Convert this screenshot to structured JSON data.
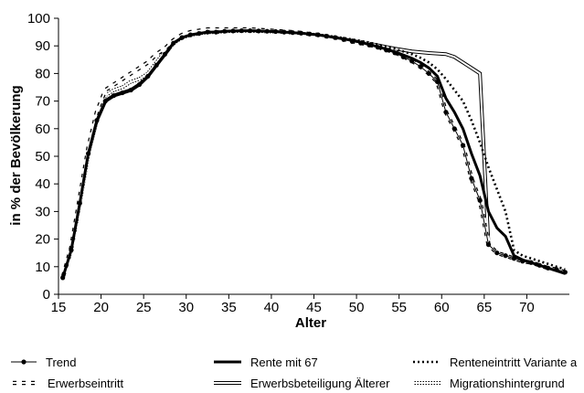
{
  "chart_data": {
    "type": "line",
    "xlabel": "Alter",
    "ylabel": "in % der Bevölkerung",
    "xlim": [
      15,
      75
    ],
    "ylim": [
      0,
      100
    ],
    "xticks": [
      15,
      20,
      25,
      30,
      35,
      40,
      45,
      50,
      55,
      60,
      65,
      70
    ],
    "yticks": [
      0,
      10,
      20,
      30,
      40,
      50,
      60,
      70,
      80,
      90,
      100
    ],
    "grid": false,
    "legend_position": "bottom",
    "series": [
      {
        "name": "Trend",
        "style": "thin-with-dots",
        "x": [
          15.5,
          16.5,
          17.5,
          18.5,
          19.5,
          20.5,
          21.5,
          22.5,
          23.5,
          24.5,
          25.5,
          26.5,
          27.5,
          28.5,
          29.5,
          30.5,
          31.5,
          32.5,
          33.5,
          34.5,
          35.5,
          36.5,
          37.5,
          38.5,
          39.5,
          40.5,
          41.5,
          42.5,
          43.5,
          44.5,
          45.5,
          46.5,
          47.5,
          48.5,
          49.5,
          50.5,
          51.5,
          52.5,
          53.5,
          54.5,
          55.5,
          56.5,
          57.5,
          58.5,
          59.5,
          60.5,
          61.5,
          62.5,
          63.5,
          64.5,
          65.5,
          66.5,
          67.5,
          68.5,
          69.5,
          70.5,
          71.5,
          72.5,
          73.5,
          74.5
        ],
        "y": [
          6,
          16,
          33,
          51,
          63,
          70,
          72,
          73,
          74,
          76,
          79,
          83,
          87,
          91,
          93,
          94,
          94.5,
          95,
          95,
          95.3,
          95.4,
          95.5,
          95.5,
          95.4,
          95.3,
          95.2,
          95,
          94.8,
          94.6,
          94.3,
          94,
          93.5,
          93,
          92.3,
          91.6,
          91,
          90.3,
          89.5,
          88.5,
          87.5,
          86,
          84.5,
          82.5,
          80,
          77,
          66,
          60,
          54,
          42,
          34,
          18,
          15,
          14,
          13,
          12,
          11.5,
          10.5,
          9.5,
          9,
          8
        ]
      },
      {
        "name": "Rente mit 67",
        "style": "thick",
        "x": [
          15.5,
          16.5,
          17.5,
          18.5,
          19.5,
          20.5,
          21.5,
          22.5,
          23.5,
          24.5,
          25.5,
          26.5,
          27.5,
          28.5,
          29.5,
          30.5,
          31.5,
          32.5,
          33.5,
          34.5,
          35.5,
          36.5,
          37.5,
          38.5,
          39.5,
          40.5,
          41.5,
          42.5,
          43.5,
          44.5,
          45.5,
          46.5,
          47.5,
          48.5,
          49.5,
          50.5,
          51.5,
          52.5,
          53.5,
          54.5,
          55.5,
          56.5,
          57.5,
          58.5,
          59.5,
          60.5,
          61.5,
          62.5,
          63.5,
          64.5,
          65.5,
          66.5,
          67.5,
          68.5,
          69.5,
          70.5,
          71.5,
          72.5,
          73.5,
          74.5
        ],
        "y": [
          6,
          16,
          33,
          51,
          63,
          70,
          72,
          73,
          74,
          76,
          79,
          83,
          87,
          91,
          93,
          94,
          94.5,
          95,
          95,
          95.3,
          95.4,
          95.5,
          95.5,
          95.4,
          95.3,
          95.2,
          95,
          94.8,
          94.6,
          94.3,
          94,
          93.5,
          93,
          92.5,
          92,
          91.3,
          90.5,
          89.7,
          88.8,
          87.8,
          86.7,
          85.5,
          84,
          82,
          79,
          71,
          66,
          60,
          51,
          43,
          30,
          24,
          21,
          14,
          12.5,
          11.5,
          10.5,
          9.5,
          8.5,
          7.5
        ]
      },
      {
        "name": "Renteneintritt Variante a",
        "style": "dotted",
        "x": [
          15.5,
          16.5,
          17.5,
          18.5,
          19.5,
          20.5,
          21.5,
          22.5,
          23.5,
          24.5,
          25.5,
          26.5,
          27.5,
          28.5,
          29.5,
          30.5,
          31.5,
          32.5,
          33.5,
          34.5,
          35.5,
          36.5,
          37.5,
          38.5,
          39.5,
          40.5,
          41.5,
          42.5,
          43.5,
          44.5,
          45.5,
          46.5,
          47.5,
          48.5,
          49.5,
          50.5,
          51.5,
          52.5,
          53.5,
          54.5,
          55.5,
          56.5,
          57.5,
          58.5,
          59.5,
          60.5,
          61.5,
          62.5,
          63.5,
          64.5,
          65.5,
          66.5,
          67.5,
          68.5,
          69.5,
          70.5,
          71.5,
          72.5,
          73.5,
          74.5
        ],
        "y": [
          6,
          16,
          33,
          51,
          63,
          70,
          72,
          73,
          74,
          76,
          79,
          83,
          87,
          91,
          93,
          94,
          94.5,
          95,
          95,
          95.3,
          95.4,
          95.5,
          95.5,
          95.4,
          95.3,
          95.2,
          95,
          94.8,
          94.6,
          94.4,
          94.1,
          93.7,
          93.3,
          92.8,
          92.3,
          91.8,
          91.2,
          90.5,
          89.7,
          88.9,
          88,
          87,
          85.7,
          84,
          81.5,
          78,
          74,
          70,
          63,
          55,
          46,
          38,
          30,
          16,
          14,
          13,
          12,
          11,
          10,
          9
        ]
      },
      {
        "name": "Erwerbseintritt",
        "style": "dashed",
        "x": [
          15.5,
          16.5,
          17.5,
          18.5,
          19.5,
          20.5,
          21.5,
          22.5,
          23.5,
          24.5,
          25.5,
          26.5,
          27.5,
          28.5,
          29.5,
          30.5,
          31.5,
          32.5,
          33.5,
          34.5,
          35.5,
          36.5,
          37.5,
          38.5,
          39.5,
          40.5,
          41.5,
          42.5,
          43.5,
          44.5,
          45.5,
          46.5,
          47.5,
          48.5,
          49.5,
          50.5,
          51.5,
          52.5,
          53.5,
          54.5,
          55.5,
          56.5,
          57.5,
          58.5,
          59.5,
          60.5,
          61.5,
          62.5,
          63.5,
          64.5,
          65.5,
          66.5,
          67.5,
          68.5,
          69.5,
          70.5,
          71.5,
          72.5,
          73.5,
          74.5
        ],
        "y": [
          6,
          17,
          35,
          53,
          66,
          74,
          76,
          78,
          80,
          82,
          84,
          87,
          89,
          92,
          94,
          95,
          95.5,
          96,
          96,
          96,
          96,
          96,
          96,
          95.8,
          95.6,
          95.4,
          95.2,
          95,
          94.7,
          94.3,
          94,
          93.5,
          93,
          92.4,
          91.8,
          91.1,
          90.4,
          89.6,
          88.7,
          87.7,
          86.3,
          84.6,
          82.6,
          80,
          77,
          66,
          60,
          54,
          42,
          34,
          18,
          15,
          14,
          13,
          12,
          11.5,
          10.5,
          9.5,
          9,
          8
        ]
      },
      {
        "name": "Erwerbsbeteiligung Älterer",
        "style": "double",
        "x": [
          15.5,
          16.5,
          17.5,
          18.5,
          19.5,
          20.5,
          21.5,
          22.5,
          23.5,
          24.5,
          25.5,
          26.5,
          27.5,
          28.5,
          29.5,
          30.5,
          31.5,
          32.5,
          33.5,
          34.5,
          35.5,
          36.5,
          37.5,
          38.5,
          39.5,
          40.5,
          41.5,
          42.5,
          43.5,
          44.5,
          45.5,
          46.5,
          47.5,
          48.5,
          49.5,
          50.5,
          51.5,
          52.5,
          53.5,
          54.5,
          55.5,
          56.5,
          57.5,
          58.5,
          59.5,
          60.5,
          61.5,
          62.5,
          63.5,
          64.5,
          65.5,
          66.5,
          67.5,
          68.5,
          69.5,
          70.5,
          71.5,
          72.5,
          73.5,
          74.5
        ],
        "y": [
          6,
          16,
          33,
          51,
          63,
          70,
          72,
          73,
          74,
          76,
          79,
          83,
          87,
          91,
          93,
          94,
          94.5,
          95,
          95,
          95.3,
          95.4,
          95.5,
          95.5,
          95.4,
          95.3,
          95.2,
          95,
          94.8,
          94.6,
          94.3,
          94,
          93.6,
          93.1,
          92.6,
          92,
          91.4,
          90.8,
          90.2,
          89.6,
          89,
          88.5,
          88,
          87.7,
          87.4,
          87.2,
          87,
          86,
          84,
          82,
          80,
          18,
          15,
          14,
          13,
          12,
          11.5,
          10.5,
          9.5,
          9,
          8
        ]
      },
      {
        "name": "Migrationshintergrund",
        "style": "thin-dotted",
        "x": [
          15.5,
          16.5,
          17.5,
          18.5,
          19.5,
          20.5,
          21.5,
          22.5,
          23.5,
          24.5,
          25.5,
          26.5,
          27.5,
          28.5,
          29.5,
          30.5,
          31.5,
          32.5,
          33.5,
          34.5,
          35.5,
          36.5,
          37.5,
          38.5,
          39.5,
          40.5,
          41.5,
          42.5,
          43.5,
          44.5,
          45.5,
          46.5,
          47.5,
          48.5,
          49.5,
          50.5,
          51.5,
          52.5,
          53.5,
          54.5,
          55.5,
          56.5,
          57.5,
          58.5,
          59.5,
          60.5,
          61.5,
          62.5,
          63.5,
          64.5,
          65.5,
          66.5,
          67.5,
          68.5,
          69.5,
          70.5,
          71.5,
          72.5,
          73.5,
          74.5
        ],
        "y": [
          6,
          16,
          34,
          52,
          64,
          72,
          74,
          75,
          77,
          78,
          80,
          84,
          88,
          91,
          93,
          94,
          94.5,
          95,
          95,
          95.3,
          95.4,
          95.5,
          95.5,
          95.4,
          95.3,
          95.2,
          95,
          94.8,
          94.6,
          94.3,
          94,
          93.5,
          93,
          92.3,
          91.6,
          91,
          90.3,
          89.5,
          88.5,
          87.5,
          86,
          84.5,
          82.5,
          80,
          77,
          66,
          60,
          54,
          42,
          34,
          18,
          15,
          14,
          13,
          12,
          11.5,
          10.5,
          9.5,
          9,
          8
        ]
      }
    ]
  }
}
